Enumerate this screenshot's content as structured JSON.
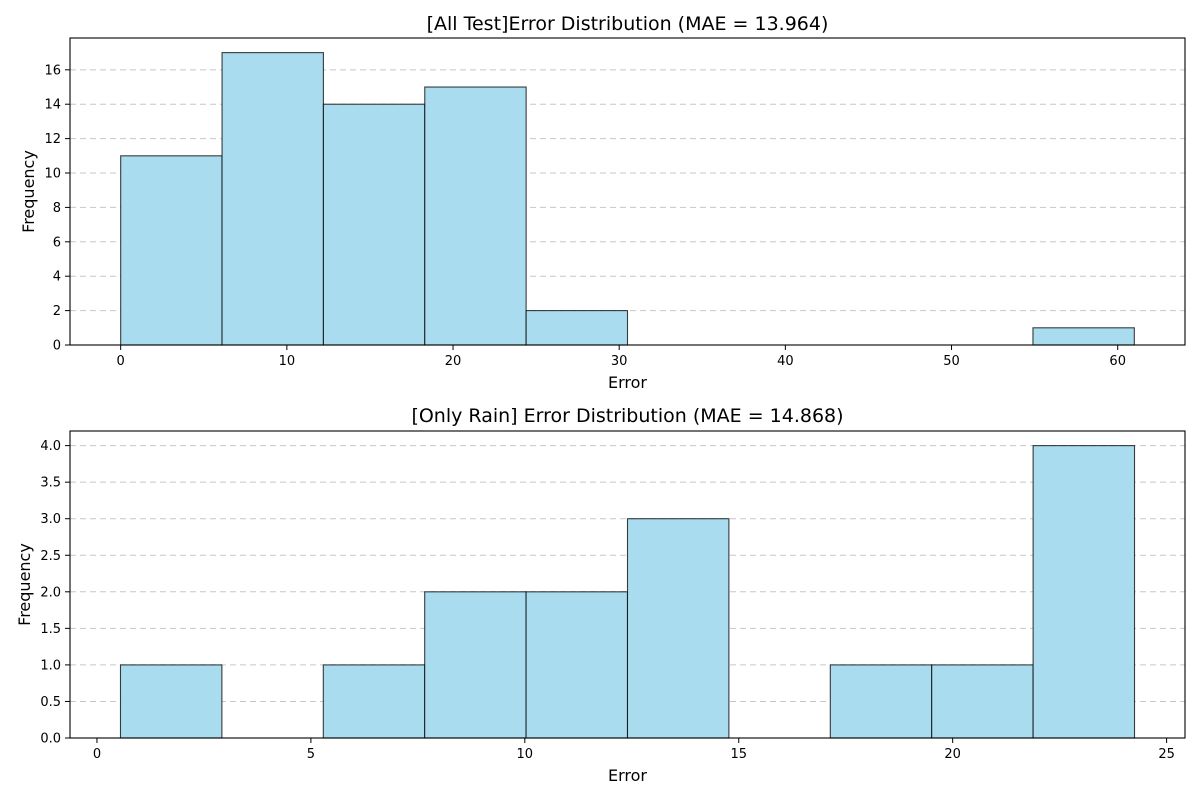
{
  "chart_data": [
    {
      "type": "bar",
      "title": "[All Test]Error Distribution (MAE = 13.964)",
      "xlabel": "Error",
      "ylabel": "Frequency",
      "bar_color": "#a8dcee",
      "bin_edges": [
        0.0,
        6.1,
        12.2,
        18.3,
        24.4,
        30.5,
        36.6,
        42.7,
        48.8,
        54.9,
        61.0
      ],
      "values": [
        11,
        17,
        14,
        15,
        2,
        0,
        0,
        0,
        0,
        1
      ],
      "xlim": [
        -3.05,
        64.05
      ],
      "ylim": [
        0,
        17.85
      ],
      "xticks": [
        0,
        10,
        20,
        30,
        40,
        50,
        60
      ],
      "xtick_labels": [
        "0",
        "10",
        "20",
        "30",
        "40",
        "50",
        "60"
      ],
      "yticks": [
        0,
        2,
        4,
        6,
        8,
        10,
        12,
        14,
        16
      ],
      "ytick_labels": [
        "0",
        "2",
        "4",
        "6",
        "8",
        "10",
        "12",
        "14",
        "16"
      ],
      "grid": "y-dashed"
    },
    {
      "type": "bar",
      "title": "[Only Rain] Error Distribution (MAE = 14.868)",
      "xlabel": "Error",
      "ylabel": "Frequency",
      "bar_color": "#a8dcee",
      "bin_edges": [
        0.55,
        2.92,
        5.29,
        7.66,
        10.03,
        12.4,
        14.77,
        17.14,
        19.51,
        21.88,
        24.25
      ],
      "values": [
        1,
        0,
        1,
        2,
        2,
        3,
        0,
        1,
        1,
        4
      ],
      "xlim": [
        -0.63,
        25.43
      ],
      "ylim": [
        0,
        4.2
      ],
      "xticks": [
        0,
        5,
        10,
        15,
        20,
        25
      ],
      "xtick_labels": [
        "0",
        "5",
        "10",
        "15",
        "20",
        "25"
      ],
      "yticks": [
        0,
        0.5,
        1,
        1.5,
        2,
        2.5,
        3,
        3.5,
        4
      ],
      "ytick_labels": [
        "0.0",
        "0.5",
        "1.0",
        "1.5",
        "2.0",
        "2.5",
        "3.0",
        "3.5",
        "4.0"
      ],
      "grid": "y-dashed"
    }
  ]
}
